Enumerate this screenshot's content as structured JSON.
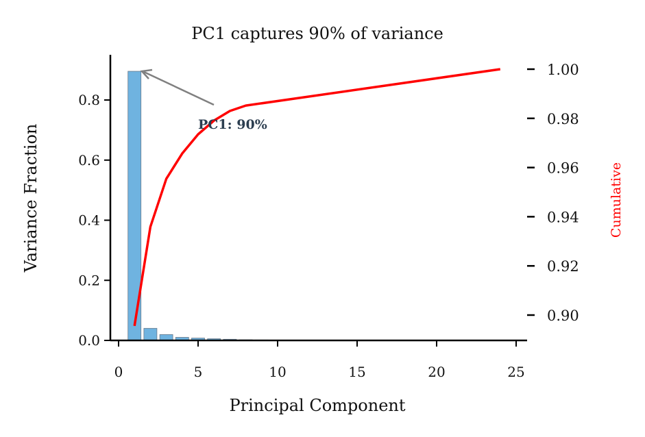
{
  "chart_data": {
    "type": "bar",
    "title": "PC1 captures 90% of variance",
    "xlabel": "Principal Component",
    "ylabel": "Variance Fraction",
    "y2label": "Cumulative",
    "xlim": [
      -0.5,
      25.5
    ],
    "ylim": [
      0,
      0.94
    ],
    "y2lim": [
      0.889,
      1.005
    ],
    "xticks": [
      0,
      5,
      10,
      15,
      20,
      25
    ],
    "yticks": [
      "0.0",
      "0.2",
      "0.4",
      "0.6",
      "0.8"
    ],
    "y2ticks": [
      "0.90",
      "0.92",
      "0.94",
      "0.96",
      "0.98",
      "1.00"
    ],
    "grid": false,
    "annotation": {
      "text": "PC1: 90%",
      "x": 5,
      "y": 0.72,
      "arrow_to": [
        1.3,
        0.9
      ]
    },
    "series": [
      {
        "name": "Variance Fraction",
        "type": "bar",
        "color": "#6fb3e0",
        "x": [
          1,
          2,
          3,
          4,
          5,
          6,
          7,
          8,
          9,
          10,
          11,
          12,
          13,
          14,
          15,
          16,
          17,
          18,
          19,
          20,
          21,
          22,
          23,
          24
        ],
        "values": [
          0.8956,
          0.0403,
          0.0195,
          0.0103,
          0.0078,
          0.0056,
          0.0039,
          0.0022,
          0.0015,
          0.0012,
          0.001,
          0.0009,
          0.0008,
          0.0007,
          0.0006,
          0.0005,
          0.0005,
          0.0004,
          0.0004,
          0.0003,
          0.0003,
          0.0002,
          0.0002,
          0.0002
        ]
      },
      {
        "name": "Cumulative",
        "type": "line",
        "color": "#ff0000",
        "axis": "right",
        "x": [
          1,
          2,
          3,
          4,
          5,
          6,
          7,
          8,
          24
        ],
        "values": [
          0.8956,
          0.9359,
          0.9554,
          0.9657,
          0.9735,
          0.9791,
          0.983,
          0.9852,
          1.0
        ]
      }
    ]
  }
}
